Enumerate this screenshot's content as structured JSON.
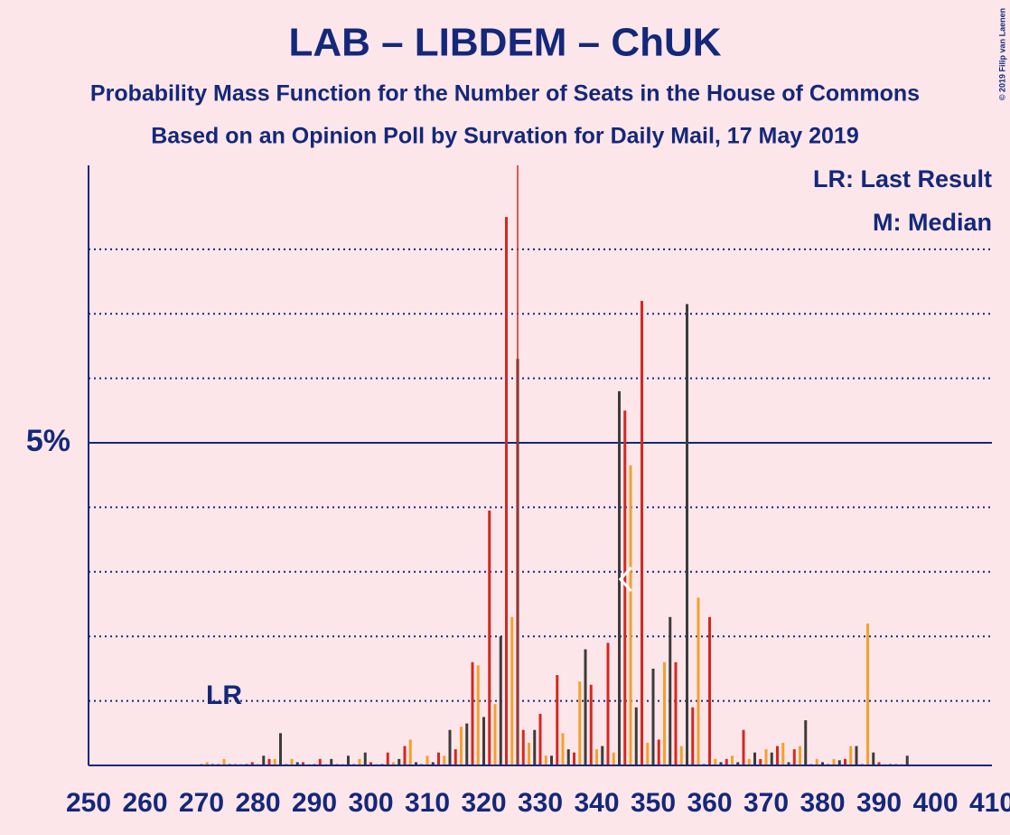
{
  "chart_data": {
    "type": "bar",
    "title": "LAB – LIBDEM – ChUK",
    "subtitle": "Probability Mass Function for the Number of Seats in the House of Commons",
    "subtitle2": "Based on an Opinion Poll by Survation for Daily Mail, 17 May 2019",
    "copyright": "© 2019 Filip van Laenen",
    "legend": [
      "LR: Last Result",
      "M: Median"
    ],
    "last_result": {
      "value": 274,
      "label": "LR"
    },
    "median": 345,
    "majority": 326,
    "colors": [
      "#d5281f",
      "#f5a02b",
      "#3d3b3b"
    ],
    "majority_color": "#d5281f",
    "x": [
      270,
      271,
      272,
      273,
      274,
      275,
      276,
      277,
      278,
      279,
      280,
      281,
      282,
      283,
      284,
      285,
      286,
      287,
      288,
      289,
      290,
      291,
      292,
      293,
      294,
      295,
      296,
      297,
      298,
      299,
      300,
      301,
      302,
      303,
      304,
      305,
      306,
      307,
      308,
      309,
      310,
      311,
      312,
      313,
      314,
      315,
      316,
      317,
      318,
      319,
      320,
      321,
      322,
      323,
      324,
      325,
      326,
      327,
      328,
      329,
      330,
      331,
      332,
      333,
      334,
      335,
      336,
      337,
      338,
      339,
      340,
      341,
      342,
      343,
      344,
      345,
      346,
      347,
      348,
      349,
      350,
      351,
      352,
      353,
      354,
      355,
      356,
      357,
      358,
      359,
      360,
      361,
      362,
      363,
      364,
      365,
      366,
      367,
      368,
      369,
      370,
      371,
      372,
      373,
      374,
      375,
      376,
      377,
      378,
      379,
      380,
      381,
      382,
      383,
      384,
      385,
      386,
      387,
      388,
      389,
      390,
      391,
      392,
      393,
      394,
      395
    ],
    "values": [
      0.02,
      0.05,
      0.02,
      0.02,
      0.1,
      0.02,
      0.02,
      0.02,
      0.02,
      0.05,
      0.02,
      0.15,
      0.1,
      0.1,
      0.5,
      0.02,
      0.1,
      0.05,
      0.05,
      0.02,
      0.02,
      0.1,
      0.02,
      0.1,
      0.02,
      0.02,
      0.15,
      0.02,
      0.1,
      0.2,
      0.05,
      0.02,
      0.02,
      0.2,
      0.05,
      0.1,
      0.3,
      0.4,
      0.05,
      0.02,
      0.15,
      0.05,
      0.2,
      0.15,
      0.55,
      0.25,
      0.6,
      0.65,
      1.6,
      1.55,
      0.75,
      3.95,
      0.95,
      2.0,
      8.5,
      2.3,
      6.3,
      0.55,
      0.35,
      0.55,
      0.8,
      0.15,
      0.15,
      1.4,
      0.5,
      0.25,
      0.2,
      1.3,
      1.8,
      1.25,
      0.25,
      0.3,
      1.9,
      0.2,
      5.8,
      5.5,
      4.65,
      0.9,
      7.2,
      0.35,
      1.5,
      0.4,
      1.6,
      2.3,
      1.6,
      0.3,
      7.15,
      0.9,
      2.6,
      0.02,
      2.3,
      0.1,
      0.05,
      0.1,
      0.15,
      0.05,
      0.55,
      0.1,
      0.2,
      0.1,
      0.25,
      0.2,
      0.3,
      0.35,
      0.05,
      0.25,
      0.3,
      0.7,
      0.02,
      0.1,
      0.05,
      0.02,
      0.1,
      0.08,
      0.1,
      0.3,
      0.3,
      0.02,
      2.2,
      0.2,
      0.05,
      0.02,
      0.02,
      0.02,
      0.02,
      0.15
    ],
    "xlim": [
      250,
      410
    ],
    "xticks": [
      250,
      260,
      270,
      280,
      290,
      300,
      310,
      320,
      330,
      340,
      350,
      360,
      370,
      380,
      390,
      400,
      410
    ],
    "ylim": [
      0,
      9.3
    ],
    "yticks": [
      {
        "value": 5,
        "label": "5%"
      }
    ],
    "minor_grid": [
      1,
      2,
      3,
      4,
      6,
      7,
      8
    ],
    "grid": true
  }
}
